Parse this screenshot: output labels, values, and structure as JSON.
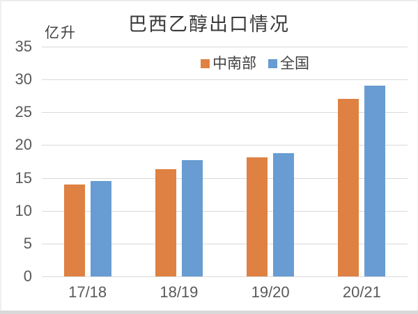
{
  "chart_data": {
    "type": "bar",
    "title": "巴西乙醇出口情况",
    "unit": "亿升",
    "categories": [
      "17/18",
      "18/19",
      "19/20",
      "20/21"
    ],
    "series": [
      {
        "name": "中南部",
        "color": "#DF8142",
        "values": [
          14.0,
          16.3,
          18.1,
          27.0
        ]
      },
      {
        "name": "全国",
        "color": "#689CD2",
        "values": [
          14.5,
          17.7,
          18.8,
          29.1
        ]
      }
    ],
    "ylim": [
      0,
      35
    ],
    "ytick_step": 5,
    "yticks": [
      35,
      30,
      25,
      20,
      15,
      10,
      5,
      0
    ],
    "xlabel": "",
    "ylabel": "亿升",
    "grid": true,
    "legend_position": "top",
    "colors": {
      "gridline": "#D9D9D9",
      "tick_text": "#595959",
      "title_text": "#3A3A3A",
      "background": "#FFFFFF"
    }
  }
}
